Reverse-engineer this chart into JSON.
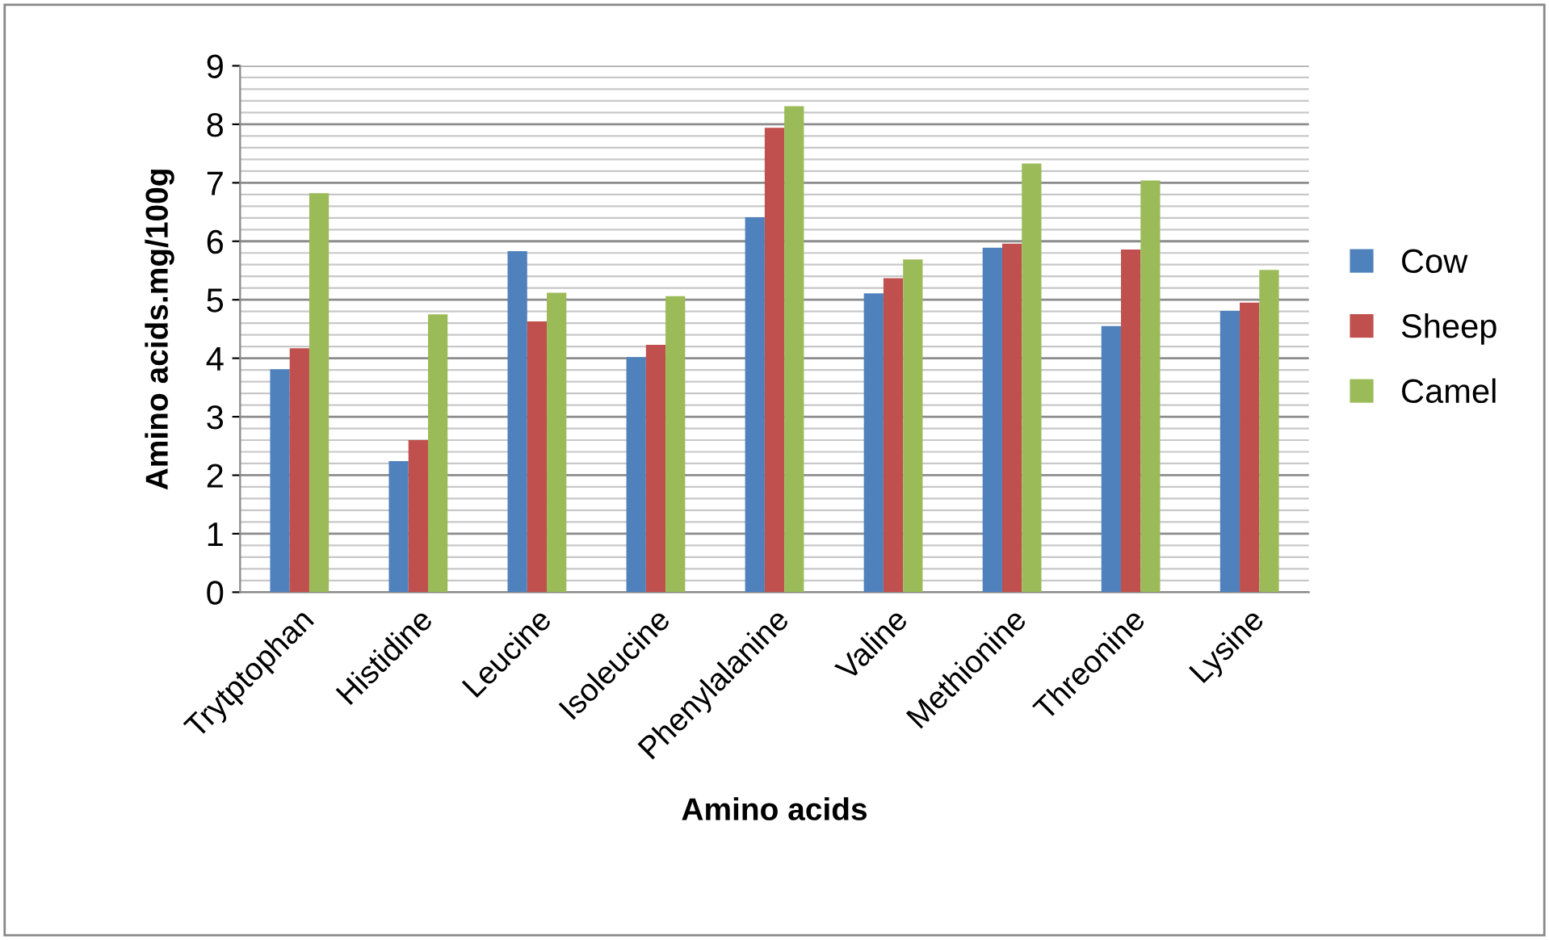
{
  "chart_data": {
    "type": "bar",
    "xlabel": "Amino acids",
    "ylabel": "Amino acids.mg/100g",
    "categories": [
      "Trytptophan",
      "Histidine",
      "Leucine",
      "Isoleucine",
      "Phenylalanine",
      "Valine",
      "Methionine",
      "Threonine",
      "Lysine"
    ],
    "series": [
      {
        "name": "Cow",
        "color": "#4f81bd",
        "values": [
          3.81,
          2.24,
          5.83,
          4.02,
          6.41,
          5.11,
          5.89,
          4.55,
          4.81
        ]
      },
      {
        "name": "Sheep",
        "color": "#c0504d",
        "values": [
          4.17,
          2.6,
          4.63,
          4.23,
          7.94,
          5.37,
          5.96,
          5.86,
          4.95
        ]
      },
      {
        "name": "Camel",
        "color": "#9bbb59",
        "values": [
          6.82,
          4.75,
          5.12,
          5.06,
          8.31,
          5.69,
          7.33,
          7.04,
          5.51
        ]
      }
    ],
    "ylim": [
      0,
      9
    ],
    "yticks": [
      0,
      1,
      2,
      3,
      4,
      5,
      6,
      7,
      8,
      9
    ],
    "grid": "y",
    "legend": "right"
  }
}
